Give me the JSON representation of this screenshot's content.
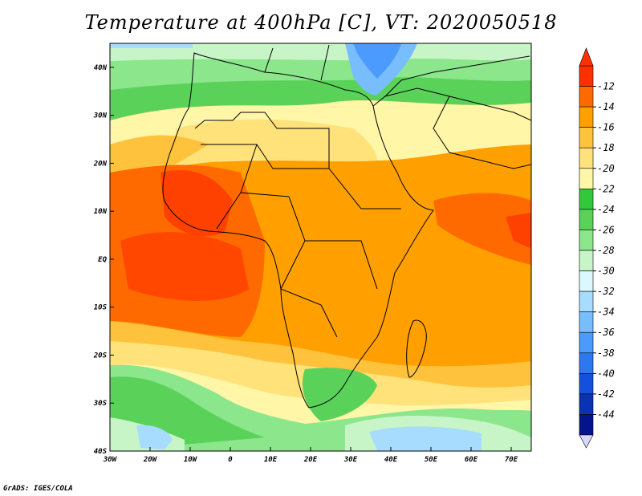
{
  "title": "Temperature at 400hPa [C], VT: 2020050518",
  "footer": "GrADS: IGES/COLA",
  "map": {
    "lat_labels": [
      "40N",
      "30N",
      "20N",
      "10N",
      "EQ",
      "10S",
      "20S",
      "30S",
      "40S"
    ],
    "lon_labels": [
      "30W",
      "20W",
      "10W",
      "0",
      "10E",
      "20E",
      "30E",
      "40E",
      "50E",
      "60E",
      "70E"
    ],
    "lat_range": [
      -40,
      45
    ],
    "lon_range": [
      -30,
      75
    ]
  },
  "colorbar": {
    "labels": [
      "-12",
      "-14",
      "-16",
      "-18",
      "-20",
      "-22",
      "-24",
      "-26",
      "-28",
      "-30",
      "-32",
      "-34",
      "-36",
      "-38",
      "-40",
      "-42",
      "-44"
    ],
    "colors": [
      "#ff3000",
      "#ff6a00",
      "#ffa000",
      "#ffc23c",
      "#ffe27a",
      "#fff6a8",
      "#32c83c",
      "#5ad25a",
      "#8ce68c",
      "#c8f5c8",
      "#dcf8ff",
      "#a8dcff",
      "#78beff",
      "#4b9bff",
      "#2d78f0",
      "#1450dc",
      "#0a32b4",
      "#05148c"
    ]
  }
}
